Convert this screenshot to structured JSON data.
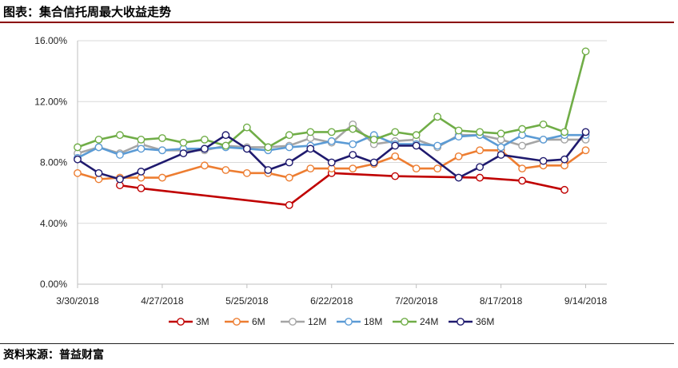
{
  "header": {
    "title": "图表：集合信托周最大收益走势"
  },
  "footer": {
    "source": "资料来源：普益财富"
  },
  "chart_data": {
    "type": "line",
    "title": "",
    "xlabel": "",
    "ylabel": "",
    "ylim": [
      0,
      16
    ],
    "yticks": [
      "0.00%",
      "4.00%",
      "8.00%",
      "12.00%",
      "16.00%"
    ],
    "xticks": [
      "3/30/2018",
      "4/27/2018",
      "5/25/2018",
      "6/22/2018",
      "7/20/2018",
      "8/17/2018",
      "9/14/2018"
    ],
    "legend": "bottom",
    "grid": "horizontal",
    "categories": [
      "3/30/2018",
      "4/6/2018",
      "4/13/2018",
      "4/20/2018",
      "4/27/2018",
      "5/4/2018",
      "5/11/2018",
      "5/18/2018",
      "5/25/2018",
      "6/1/2018",
      "6/8/2018",
      "6/15/2018",
      "6/22/2018",
      "6/29/2018",
      "7/6/2018",
      "7/13/2018",
      "7/20/2018",
      "7/27/2018",
      "8/3/2018",
      "8/10/2018",
      "8/17/2018",
      "8/24/2018",
      "8/31/2018",
      "9/7/2018",
      "9/14/2018",
      "9/21/2018"
    ],
    "series": [
      {
        "name": "3M",
        "color": "#c00000",
        "values": [
          null,
          null,
          6.5,
          6.3,
          null,
          null,
          null,
          null,
          null,
          null,
          5.2,
          null,
          7.3,
          null,
          null,
          7.1,
          null,
          null,
          null,
          7.0,
          null,
          6.8,
          null,
          6.2,
          null,
          null
        ]
      },
      {
        "name": "6M",
        "color": "#ed7d31",
        "values": [
          7.3,
          6.9,
          7.0,
          7.0,
          7.0,
          null,
          7.8,
          7.5,
          7.3,
          7.3,
          7.0,
          7.6,
          7.6,
          7.6,
          7.9,
          8.4,
          7.6,
          7.6,
          8.4,
          8.8,
          8.8,
          7.6,
          7.8,
          7.8,
          8.8,
          null
        ]
      },
      {
        "name": "12M",
        "color": "#a5a5a5",
        "values": [
          8.6,
          9.0,
          8.6,
          9.2,
          8.8,
          8.8,
          8.8,
          9.1,
          9.0,
          9.0,
          9.1,
          9.6,
          9.3,
          10.5,
          9.2,
          9.4,
          9.5,
          9.0,
          9.8,
          9.8,
          9.5,
          9.1,
          9.5,
          9.5,
          9.5,
          null
        ]
      },
      {
        "name": "18M",
        "color": "#5b9bd5",
        "values": [
          8.3,
          9.0,
          8.5,
          8.9,
          8.8,
          8.9,
          8.9,
          9.0,
          8.9,
          8.8,
          9.0,
          9.1,
          9.4,
          9.2,
          9.8,
          9.2,
          9.2,
          9.1,
          9.7,
          9.8,
          9.0,
          9.8,
          9.5,
          9.8,
          9.8,
          null
        ]
      },
      {
        "name": "24M",
        "color": "#70ad47",
        "values": [
          9.0,
          9.5,
          9.8,
          9.5,
          9.6,
          9.3,
          9.5,
          9.1,
          10.3,
          9.0,
          9.8,
          10.0,
          10.0,
          10.2,
          9.5,
          10.0,
          9.8,
          11.0,
          10.1,
          10.0,
          9.9,
          10.2,
          10.5,
          10.0,
          15.3,
          null
        ]
      },
      {
        "name": "36M",
        "color": "#1f1a6e",
        "values": [
          8.2,
          7.3,
          6.9,
          7.4,
          null,
          8.6,
          8.9,
          9.8,
          8.9,
          7.5,
          8.0,
          8.9,
          8.0,
          8.5,
          8.0,
          9.1,
          9.1,
          null,
          7.0,
          7.7,
          8.5,
          null,
          8.1,
          8.2,
          10.0,
          null
        ]
      }
    ]
  }
}
